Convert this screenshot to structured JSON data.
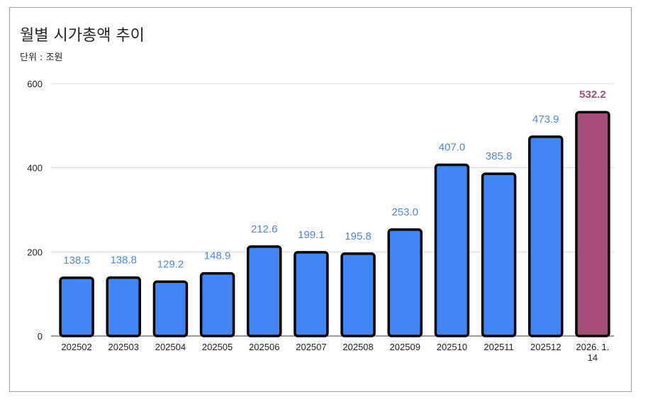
{
  "chart_data": {
    "type": "bar",
    "title": "월별 시가총액 추이",
    "subtitle": "단위 : 조원",
    "categories": [
      "202502",
      "202503",
      "202504",
      "202505",
      "202506",
      "202507",
      "202508",
      "202509",
      "202510",
      "202511",
      "202512",
      "2026. 1. 14"
    ],
    "values": [
      138.5,
      138.8,
      129.2,
      148.9,
      212.6,
      199.1,
      195.8,
      253.0,
      407.0,
      385.8,
      473.9,
      532.2
    ],
    "value_labels": [
      "138.5",
      "138.8",
      "129.2",
      "148.9",
      "212.6",
      "199.1",
      "195.8",
      "253.0",
      "407.0",
      "385.8",
      "473.9",
      "532.2"
    ],
    "ylim": [
      0,
      600
    ],
    "yticks": [
      "0",
      "200",
      "400",
      "600"
    ],
    "grid": true,
    "colors": {
      "bar": "#4285f4",
      "highlight_bar": "#a64d79",
      "label": "#4a86e8",
      "highlight_label": "#a64d79",
      "outline": "#000000"
    },
    "highlight_index": 11
  }
}
